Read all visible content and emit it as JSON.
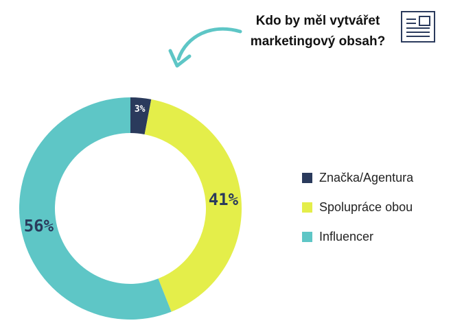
{
  "title": "Kdo by měl vytvářet marketingový obsah?",
  "icons": {
    "header": "document-icon",
    "pointer": "curved-arrow-icon"
  },
  "colors": {
    "brand": "#2a3a5c",
    "spoluprace": "#e4ee4a",
    "influencer": "#5ec6c6",
    "arrow": "#5ec6c6",
    "label_text": "#2a3a5c"
  },
  "chart_data": {
    "type": "pie",
    "variant": "donut",
    "title": "Kdo by měl vytvářet marketingový obsah?",
    "categories": [
      "Značka/Agentura",
      "Spolupráce obou",
      "Influencer"
    ],
    "values": [
      3,
      41,
      56
    ],
    "labels": [
      "3%",
      "41%",
      "56%"
    ],
    "legend_position": "right"
  }
}
